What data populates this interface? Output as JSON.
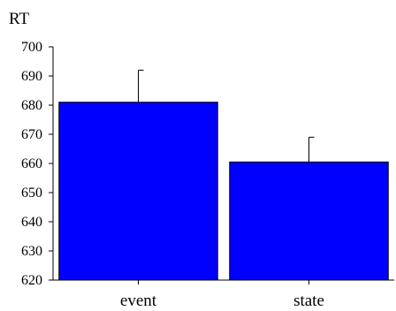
{
  "chart_data": {
    "type": "bar",
    "ylabel": "RT",
    "xlabel": "",
    "categories": [
      "event",
      "state"
    ],
    "values": [
      681,
      660.5
    ],
    "error_upper": [
      692,
      669
    ],
    "ylim": [
      620,
      700
    ],
    "yticks": [
      "700",
      "690",
      "680",
      "670",
      "660",
      "650",
      "640",
      "630",
      "620"
    ],
    "bar_color": "#0000ff",
    "grid": false
  }
}
